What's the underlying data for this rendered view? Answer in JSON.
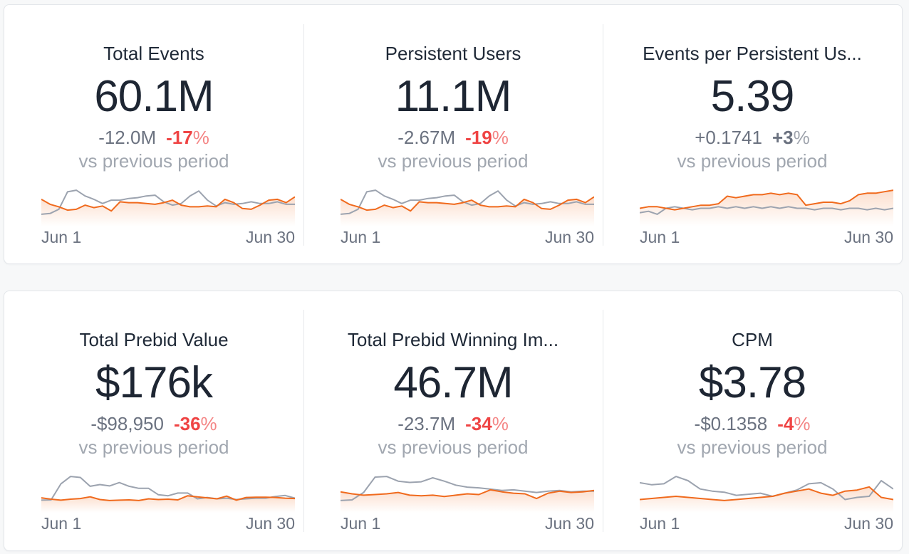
{
  "colors": {
    "current": "#f06a1d",
    "previous": "#9ca3af",
    "negative": "#ef4444",
    "neutral": "#6b7280"
  },
  "x_axis": {
    "start": "Jun 1",
    "end": "Jun 30"
  },
  "vs_text": "vs previous period",
  "metrics": [
    {
      "title": "Total Events",
      "value": "60.1M",
      "delta": "-12.0M",
      "pct": "-17",
      "pct_suffix": "%",
      "direction": "down",
      "chart_data": {
        "type": "line",
        "current": [
          58,
          52,
          49,
          45,
          46,
          51,
          48,
          50,
          44,
          55,
          54,
          54,
          53,
          52,
          54,
          57,
          51,
          49,
          49,
          50,
          49,
          58,
          54,
          47,
          46,
          51,
          57,
          58,
          54,
          61
        ],
        "previous": [
          40,
          41,
          46,
          67,
          69,
          62,
          58,
          53,
          57,
          57,
          59,
          60,
          62,
          63,
          55,
          51,
          53,
          62,
          68,
          57,
          50,
          54,
          52,
          53,
          55,
          53,
          53,
          55,
          52,
          52
        ]
      }
    },
    {
      "title": "Persistent Users",
      "value": "11.1M",
      "delta": "-2.67M",
      "pct": "-19",
      "pct_suffix": "%",
      "direction": "down",
      "chart_data": {
        "type": "line",
        "current": [
          58,
          52,
          49,
          45,
          46,
          51,
          48,
          50,
          44,
          55,
          54,
          54,
          53,
          52,
          54,
          57,
          51,
          49,
          49,
          50,
          49,
          58,
          54,
          47,
          46,
          51,
          57,
          58,
          54,
          61
        ],
        "previous": [
          40,
          41,
          46,
          67,
          69,
          62,
          58,
          53,
          57,
          57,
          59,
          60,
          62,
          63,
          55,
          51,
          53,
          62,
          68,
          57,
          50,
          54,
          52,
          53,
          55,
          53,
          53,
          55,
          52,
          52
        ]
      }
    },
    {
      "title": "Events per Persistent Us...",
      "value": "5.39",
      "delta": "+0.1741",
      "pct": "+3",
      "pct_suffix": "%",
      "direction": "up",
      "chart_data": {
        "type": "line",
        "current": [
          5.26,
          5.27,
          5.27,
          5.26,
          5.25,
          5.26,
          5.27,
          5.28,
          5.28,
          5.29,
          5.34,
          5.33,
          5.34,
          5.35,
          5.35,
          5.36,
          5.35,
          5.36,
          5.35,
          5.28,
          5.29,
          5.3,
          5.3,
          5.29,
          5.31,
          5.35,
          5.36,
          5.36,
          5.37,
          5.38
        ],
        "previous": [
          5.23,
          5.24,
          5.22,
          5.26,
          5.27,
          5.26,
          5.25,
          5.26,
          5.26,
          5.27,
          5.26,
          5.27,
          5.26,
          5.27,
          5.26,
          5.27,
          5.26,
          5.27,
          5.26,
          5.26,
          5.25,
          5.26,
          5.26,
          5.25,
          5.26,
          5.26,
          5.25,
          5.26,
          5.25,
          5.26
        ]
      }
    },
    {
      "title": "Total Prebid Value",
      "value": "$176k",
      "delta": "-$98,950",
      "pct": "-36",
      "pct_suffix": "%",
      "direction": "down",
      "chart_data": {
        "type": "line",
        "current": [
          5.2,
          4.8,
          4.5,
          4.8,
          5.0,
          5.5,
          4.7,
          4.4,
          4.5,
          4.6,
          4.4,
          4.9,
          4.7,
          4.8,
          4.6,
          5.8,
          5.5,
          5.2,
          4.9,
          5.7,
          4.5,
          5.3,
          5.4,
          5.4,
          5.3,
          5.1,
          5.0
        ],
        "previous": [
          4.5,
          4.6,
          9.3,
          11.5,
          11.2,
          8.6,
          9.1,
          8.7,
          9.7,
          8.6,
          8.0,
          8.0,
          6.1,
          5.8,
          6.6,
          6.6,
          4.9,
          5.3,
          4.9,
          5.1,
          4.7,
          4.9,
          5.1,
          5.1,
          5.6,
          5.9,
          5.1
        ]
      }
    },
    {
      "title": "Total Prebid Winning Im...",
      "value": "46.7M",
      "delta": "-23.7M",
      "pct": "-34",
      "pct_suffix": "%",
      "direction": "down",
      "chart_data": {
        "type": "line",
        "current": [
          45,
          42,
          40,
          41,
          42,
          44,
          40,
          39,
          40,
          38,
          40,
          42,
          41,
          48,
          45,
          43,
          42,
          35,
          43,
          46,
          44,
          45,
          47
        ],
        "previous": [
          32,
          33,
          44,
          67,
          68,
          61,
          59,
          60,
          66,
          61,
          55,
          52,
          51,
          49,
          47,
          48,
          46,
          44,
          46,
          47,
          45,
          46,
          46
        ]
      }
    },
    {
      "title": "CPM",
      "value": "$3.78",
      "delta": "-$0.1358",
      "pct": "-4",
      "pct_suffix": "%",
      "direction": "down",
      "chart_data": {
        "type": "line",
        "current": [
          3.7,
          3.71,
          3.72,
          3.73,
          3.72,
          3.71,
          3.7,
          3.69,
          3.7,
          3.71,
          3.72,
          3.73,
          3.76,
          3.78,
          3.8,
          3.76,
          3.74,
          3.78,
          3.79,
          3.82,
          3.72,
          3.7
        ],
        "previous": [
          3.86,
          3.84,
          3.85,
          3.92,
          3.88,
          3.8,
          3.78,
          3.77,
          3.74,
          3.75,
          3.76,
          3.73,
          3.76,
          3.79,
          3.85,
          3.86,
          3.8,
          3.7,
          3.72,
          3.73,
          3.88,
          3.8
        ]
      }
    }
  ]
}
